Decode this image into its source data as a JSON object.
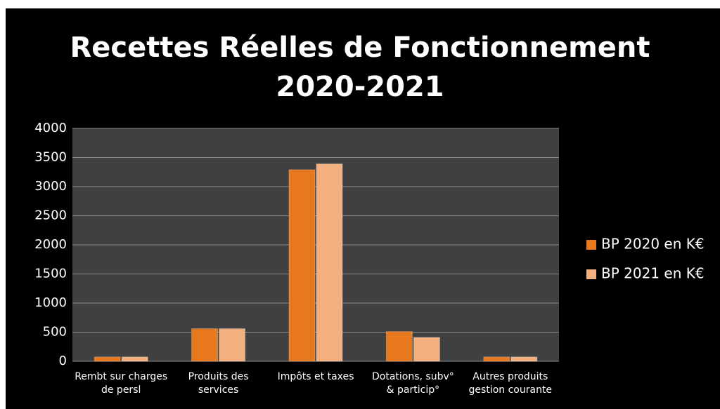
{
  "chart_data": {
    "type": "bar",
    "title": [
      "Recettes Réelles de Fonctionnement",
      "2020-2021"
    ],
    "categories": [
      "Rembt sur charges de persl",
      "Produits des services",
      "Impôts et taxes",
      "Dotations, subv° & particip°",
      "Autres produits gestion courante"
    ],
    "series": [
      {
        "name": "BP 2020 en K€",
        "color": "#e8781e",
        "values": [
          75,
          560,
          3290,
          510,
          75
        ]
      },
      {
        "name": "BP 2021 en K€",
        "color": "#f2b080",
        "values": [
          75,
          560,
          3390,
          410,
          75
        ]
      }
    ],
    "ylim": [
      0,
      4000
    ],
    "yticks": [
      0,
      500,
      1000,
      1500,
      2000,
      2500,
      3000,
      3500,
      4000
    ],
    "grid": true,
    "legend": "right"
  }
}
